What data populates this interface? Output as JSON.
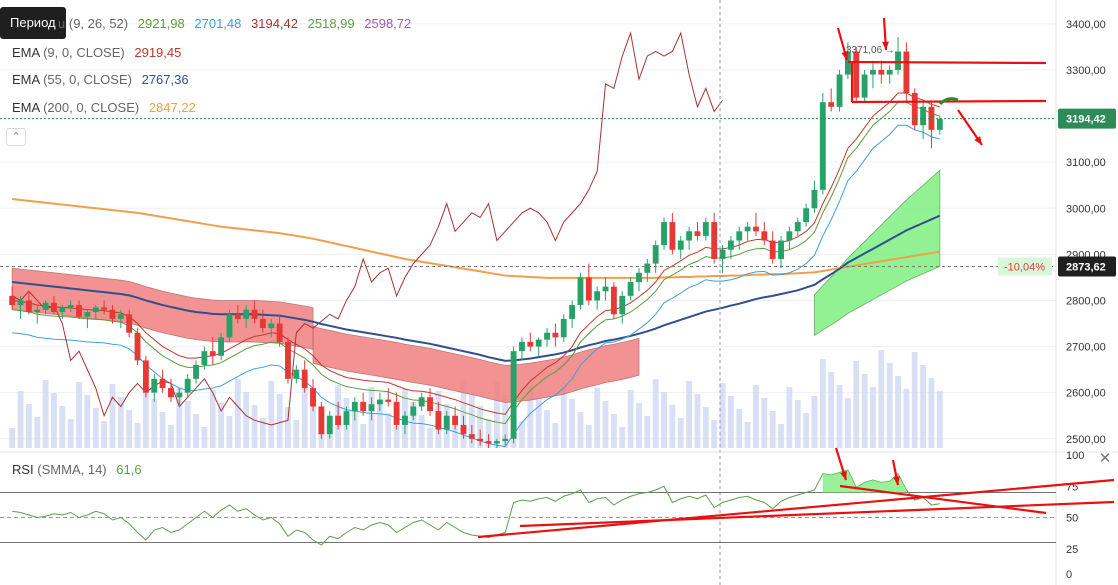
{
  "tooltip": {
    "label": "Период"
  },
  "legends": {
    "ichimoku": {
      "name_suffix": "u",
      "params": "(9, 26, 52)",
      "v1": "2921,98",
      "v2": "2701,48",
      "v3": "3194,42",
      "v4": "2518,99",
      "v5": "2598,72"
    },
    "ema9": {
      "name": "EMA",
      "params": "(9, 0, CLOSE)",
      "value": "2919,45"
    },
    "ema55": {
      "name": "EMA",
      "params": "(55, 0, CLOSE)",
      "value": "2767,36"
    },
    "ema200": {
      "name": "EMA",
      "params": "(200, 0, CLOSE)",
      "value": "2847,22"
    }
  },
  "colors": {
    "bull": "#26a269",
    "bear": "#e53935",
    "ema9": "#c0392b",
    "ema55": "#2f4f8f",
    "ema200": "#f0a04b",
    "kumo_bull": "#7fef7f",
    "kumo_bear": "#f28080",
    "tenkan": "#5a9e3a",
    "kijun": "#3aa0e0",
    "chikou": "#a83232",
    "volume": "#c9d3f2",
    "rsi": "#5aa04a",
    "annotation": "#e81010"
  },
  "price_axis": {
    "ticks": [
      "3400,00",
      "3300,00",
      "3200,00",
      "3100,00",
      "3000,00",
      "2900,00",
      "2800,00",
      "2700,00",
      "2600,00",
      "2500,00"
    ]
  },
  "current_price": {
    "label": "3194,42"
  },
  "crosshair_price": {
    "label": "2873,62",
    "pct": "-10,04%"
  },
  "high_marker": {
    "label": "3371,06"
  },
  "rsi": {
    "name": "RSI",
    "params": "(SMMA, 14)",
    "value": "61,6",
    "ticks": [
      "100",
      "75",
      "50",
      "25",
      "0"
    ]
  },
  "close_icon": {
    "glyph": "✕"
  },
  "chart_data": {
    "type": "candlestick",
    "series_note": "",
    "ylim": [
      2480,
      3430
    ],
    "rsi_ylim": [
      0,
      100
    ],
    "candles": [
      [
        2810,
        2830,
        2780,
        2790
      ],
      [
        2790,
        2810,
        2760,
        2800
      ],
      [
        2800,
        2820,
        2770,
        2775
      ],
      [
        2775,
        2790,
        2750,
        2780
      ],
      [
        2780,
        2800,
        2770,
        2795
      ],
      [
        2795,
        2810,
        2770,
        2775
      ],
      [
        2775,
        2790,
        2760,
        2785
      ],
      [
        2785,
        2800,
        2775,
        2790
      ],
      [
        2790,
        2800,
        2760,
        2765
      ],
      [
        2765,
        2780,
        2740,
        2775
      ],
      [
        2775,
        2790,
        2760,
        2785
      ],
      [
        2785,
        2800,
        2770,
        2780
      ],
      [
        2780,
        2790,
        2750,
        2760
      ],
      [
        2760,
        2780,
        2740,
        2770
      ],
      [
        2770,
        2780,
        2720,
        2730
      ],
      [
        2730,
        2740,
        2660,
        2670
      ],
      [
        2670,
        2680,
        2590,
        2600
      ],
      [
        2600,
        2640,
        2580,
        2630
      ],
      [
        2630,
        2650,
        2600,
        2610
      ],
      [
        2610,
        2630,
        2580,
        2590
      ],
      [
        2590,
        2610,
        2570,
        2600
      ],
      [
        2600,
        2640,
        2590,
        2630
      ],
      [
        2630,
        2670,
        2620,
        2660
      ],
      [
        2660,
        2700,
        2650,
        2690
      ],
      [
        2690,
        2720,
        2660,
        2680
      ],
      [
        2680,
        2730,
        2670,
        2720
      ],
      [
        2720,
        2780,
        2710,
        2770
      ],
      [
        2770,
        2790,
        2750,
        2760
      ],
      [
        2760,
        2790,
        2740,
        2780
      ],
      [
        2780,
        2800,
        2750,
        2760
      ],
      [
        2760,
        2780,
        2730,
        2740
      ],
      [
        2740,
        2760,
        2720,
        2750
      ],
      [
        2750,
        2770,
        2700,
        2710
      ],
      [
        2710,
        2720,
        2620,
        2630
      ],
      [
        2630,
        2660,
        2620,
        2650
      ],
      [
        2650,
        2670,
        2600,
        2610
      ],
      [
        2610,
        2630,
        2560,
        2570
      ],
      [
        2570,
        2580,
        2500,
        2510
      ],
      [
        2510,
        2560,
        2500,
        2550
      ],
      [
        2550,
        2580,
        2520,
        2530
      ],
      [
        2530,
        2570,
        2520,
        2560
      ],
      [
        2560,
        2590,
        2540,
        2580
      ],
      [
        2580,
        2600,
        2550,
        2560
      ],
      [
        2560,
        2590,
        2540,
        2575
      ],
      [
        2575,
        2600,
        2560,
        2585
      ],
      [
        2585,
        2610,
        2570,
        2580
      ],
      [
        2580,
        2600,
        2520,
        2530
      ],
      [
        2530,
        2560,
        2510,
        2550
      ],
      [
        2550,
        2580,
        2540,
        2570
      ],
      [
        2570,
        2600,
        2560,
        2590
      ],
      [
        2590,
        2610,
        2550,
        2560
      ],
      [
        2560,
        2580,
        2510,
        2520
      ],
      [
        2520,
        2560,
        2510,
        2550
      ],
      [
        2550,
        2570,
        2520,
        2530
      ],
      [
        2530,
        2550,
        2500,
        2510
      ],
      [
        2510,
        2530,
        2490,
        2500
      ],
      [
        2500,
        2520,
        2485,
        2495
      ],
      [
        2495,
        2510,
        2480,
        2490
      ],
      [
        2490,
        2500,
        2480,
        2495
      ],
      [
        2495,
        2510,
        2485,
        2500
      ],
      [
        2500,
        2700,
        2490,
        2690
      ],
      [
        2690,
        2720,
        2670,
        2710
      ],
      [
        2710,
        2730,
        2690,
        2700
      ],
      [
        2700,
        2720,
        2680,
        2715
      ],
      [
        2715,
        2740,
        2700,
        2730
      ],
      [
        2730,
        2750,
        2700,
        2720
      ],
      [
        2720,
        2770,
        2710,
        2760
      ],
      [
        2760,
        2800,
        2740,
        2790
      ],
      [
        2790,
        2860,
        2780,
        2850
      ],
      [
        2850,
        2880,
        2790,
        2800
      ],
      [
        2800,
        2830,
        2780,
        2820
      ],
      [
        2820,
        2850,
        2800,
        2830
      ],
      [
        2830,
        2840,
        2760,
        2770
      ],
      [
        2770,
        2820,
        2750,
        2810
      ],
      [
        2810,
        2850,
        2800,
        2840
      ],
      [
        2840,
        2870,
        2820,
        2860
      ],
      [
        2860,
        2890,
        2840,
        2880
      ],
      [
        2880,
        2930,
        2860,
        2920
      ],
      [
        2920,
        2980,
        2910,
        2970
      ],
      [
        2970,
        2990,
        2900,
        2910
      ],
      [
        2910,
        2940,
        2890,
        2930
      ],
      [
        2930,
        2960,
        2910,
        2950
      ],
      [
        2950,
        2970,
        2930,
        2940
      ],
      [
        2940,
        2980,
        2930,
        2970
      ],
      [
        2970,
        2990,
        2880,
        2890
      ],
      [
        2890,
        2920,
        2860,
        2910
      ],
      [
        2910,
        2940,
        2890,
        2930
      ],
      [
        2930,
        2960,
        2910,
        2950
      ],
      [
        2950,
        2970,
        2930,
        2960
      ],
      [
        2960,
        2990,
        2940,
        2950
      ],
      [
        2950,
        2970,
        2920,
        2930
      ],
      [
        2930,
        2950,
        2880,
        2890
      ],
      [
        2890,
        2940,
        2870,
        2930
      ],
      [
        2930,
        2960,
        2910,
        2950
      ],
      [
        2950,
        2980,
        2940,
        2970
      ],
      [
        2970,
        3010,
        2960,
        3000
      ],
      [
        3000,
        3060,
        2990,
        3040
      ],
      [
        3040,
        3250,
        3030,
        3230
      ],
      [
        3230,
        3260,
        3210,
        3220
      ],
      [
        3220,
        3300,
        3210,
        3290
      ],
      [
        3290,
        3360,
        3280,
        3340
      ],
      [
        3340,
        3350,
        3230,
        3240
      ],
      [
        3240,
        3300,
        3230,
        3290
      ],
      [
        3290,
        3320,
        3260,
        3300
      ],
      [
        3300,
        3320,
        3270,
        3290
      ],
      [
        3290,
        3310,
        3270,
        3300
      ],
      [
        3300,
        3371,
        3290,
        3340
      ],
      [
        3340,
        3360,
        3230,
        3250
      ],
      [
        3250,
        3260,
        3170,
        3180
      ],
      [
        3180,
        3230,
        3150,
        3220
      ],
      [
        3220,
        3230,
        3130,
        3170
      ],
      [
        3170,
        3200,
        3160,
        3194
      ]
    ],
    "ema9": [
      2800,
      2798,
      2795,
      2790,
      2788,
      2786,
      2785,
      2784,
      2782,
      2780,
      2779,
      2778,
      2775,
      2773,
      2765,
      2750,
      2730,
      2715,
      2700,
      2690,
      2680,
      2675,
      2675,
      2678,
      2680,
      2685,
      2695,
      2705,
      2715,
      2722,
      2725,
      2730,
      2728,
      2715,
      2705,
      2695,
      2680,
      2660,
      2648,
      2640,
      2633,
      2630,
      2627,
      2625,
      2624,
      2622,
      2615,
      2608,
      2604,
      2603,
      2600,
      2595,
      2590,
      2585,
      2578,
      2572,
      2565,
      2560,
      2556,
      2553,
      2580,
      2605,
      2625,
      2640,
      2655,
      2665,
      2680,
      2700,
      2730,
      2748,
      2765,
      2778,
      2780,
      2786,
      2795,
      2808,
      2822,
      2840,
      2865,
      2875,
      2886,
      2898,
      2905,
      2915,
      2912,
      2912,
      2915,
      2920,
      2928,
      2932,
      2933,
      2925,
      2926,
      2930,
      2938,
      2950,
      2968,
      3010,
      3045,
      3085,
      3130,
      3150,
      3175,
      3200,
      3215,
      3230,
      3250,
      3250,
      3240,
      3235,
      3225,
      3220
    ],
    "ema55": [
      2840,
      2838,
      2836,
      2834,
      2832,
      2830,
      2828,
      2826,
      2824,
      2822,
      2820,
      2818,
      2816,
      2814,
      2811,
      2806,
      2800,
      2795,
      2790,
      2786,
      2782,
      2778,
      2775,
      2773,
      2771,
      2770,
      2770,
      2770,
      2770,
      2770,
      2769,
      2768,
      2767,
      2764,
      2761,
      2758,
      2754,
      2749,
      2745,
      2741,
      2737,
      2734,
      2731,
      2728,
      2725,
      2722,
      2719,
      2715,
      2712,
      2709,
      2706,
      2702,
      2698,
      2694,
      2690,
      2686,
      2682,
      2677,
      2673,
      2669,
      2670,
      2672,
      2674,
      2677,
      2680,
      2683,
      2687,
      2692,
      2698,
      2703,
      2707,
      2712,
      2715,
      2719,
      2723,
      2728,
      2733,
      2739,
      2746,
      2752,
      2758,
      2764,
      2770,
      2776,
      2780,
      2784,
      2789,
      2793,
      2798,
      2803,
      2807,
      2810,
      2814,
      2818,
      2822,
      2828,
      2834,
      2846,
      2857,
      2869,
      2882,
      2892,
      2902,
      2912,
      2922,
      2932,
      2942,
      2952,
      2960,
      2968,
      2976,
      2984
    ],
    "ema200": [
      3020,
      3018,
      3016,
      3014,
      3012,
      3010,
      3008,
      3006,
      3004,
      3002,
      3000,
      2998,
      2996,
      2994,
      2992,
      2990,
      2987,
      2984,
      2981,
      2978,
      2975,
      2972,
      2969,
      2966,
      2963,
      2960,
      2958,
      2956,
      2954,
      2952,
      2950,
      2948,
      2946,
      2943,
      2940,
      2937,
      2934,
      2930,
      2926,
      2922,
      2918,
      2914,
      2910,
      2906,
      2902,
      2898,
      2894,
      2890,
      2887,
      2884,
      2881,
      2878,
      2875,
      2872,
      2869,
      2866,
      2863,
      2860,
      2857,
      2854,
      2853,
      2852,
      2851,
      2850,
      2849,
      2849,
      2849,
      2849,
      2849,
      2849,
      2849,
      2849,
      2849,
      2849,
      2849,
      2849,
      2849,
      2849,
      2850,
      2850,
      2851,
      2851,
      2852,
      2852,
      2853,
      2853,
      2854,
      2854,
      2855,
      2856,
      2856,
      2857,
      2857,
      2858,
      2859,
      2860,
      2861,
      2864,
      2867,
      2870,
      2873,
      2876,
      2879,
      2882,
      2885,
      2888,
      2891,
      2894,
      2897,
      2900,
      2903,
      2906
    ],
    "rsi": [
      55,
      54,
      52,
      50,
      51,
      53,
      52,
      54,
      50,
      52,
      55,
      53,
      48,
      50,
      45,
      38,
      32,
      40,
      42,
      38,
      40,
      45,
      50,
      55,
      50,
      56,
      60,
      55,
      57,
      52,
      48,
      50,
      45,
      35,
      40,
      38,
      32,
      28,
      35,
      33,
      38,
      42,
      40,
      44,
      46,
      44,
      38,
      42,
      46,
      48,
      44,
      40,
      46,
      42,
      38,
      36,
      35,
      34,
      36,
      38,
      62,
      64,
      63,
      65,
      66,
      63,
      67,
      69,
      72,
      62,
      65,
      66,
      60,
      64,
      67,
      69,
      70,
      72,
      75,
      62,
      65,
      67,
      65,
      68,
      58,
      62,
      64,
      66,
      67,
      64,
      62,
      57,
      63,
      66,
      68,
      70,
      72,
      85,
      84,
      86,
      88,
      74,
      78,
      80,
      78,
      79,
      85,
      72,
      64,
      66,
      60,
      61
    ]
  }
}
